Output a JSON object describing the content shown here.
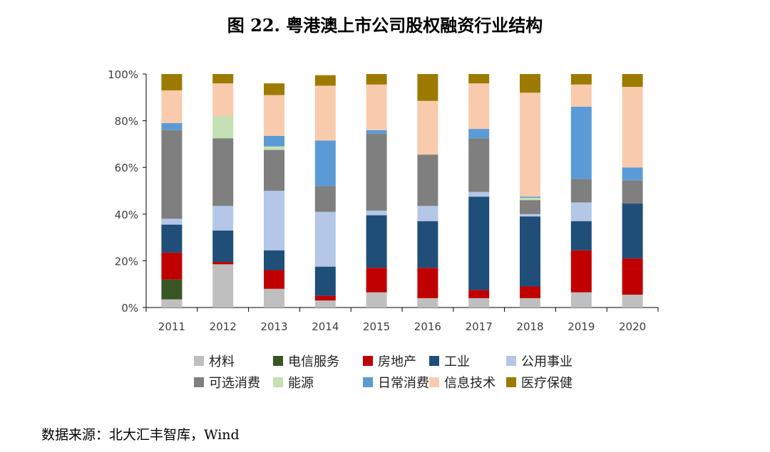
{
  "title": "图 22. 粤港澳上市公司股权融资行业结构",
  "source": "数据来源：北大汇丰智库，Wind",
  "chart_data": {
    "type": "stacked-bar-100",
    "categories": [
      "2011",
      "2012",
      "2013",
      "2014",
      "2015",
      "2016",
      "2017",
      "2018",
      "2019",
      "2020"
    ],
    "yticks": [
      "0%",
      "20%",
      "40%",
      "60%",
      "80%",
      "100%"
    ],
    "ylim": [
      0,
      100
    ],
    "series": [
      {
        "name": "材料",
        "color": "#bfbfbf",
        "values": [
          3.5,
          18.5,
          8,
          3,
          6.5,
          4,
          4,
          4,
          6.5,
          5.5
        ]
      },
      {
        "name": "电信服务",
        "color": "#375623",
        "values": [
          8.5,
          0,
          0,
          0,
          0,
          0,
          0,
          0,
          0,
          0
        ]
      },
      {
        "name": "房地产",
        "color": "#c00000",
        "values": [
          11.5,
          1,
          8,
          2,
          10.5,
          13,
          3.5,
          5,
          18,
          15.5
        ]
      },
      {
        "name": "工业",
        "color": "#1f4e79",
        "values": [
          12,
          13.5,
          8.5,
          12.5,
          22.5,
          20,
          40,
          30,
          12.5,
          23.5
        ]
      },
      {
        "name": "公用事业",
        "color": "#b4c7e7",
        "values": [
          2.5,
          10.5,
          25.5,
          23.5,
          2,
          6.5,
          2,
          1,
          8,
          0
        ]
      },
      {
        "name": "可选消费",
        "color": "#7f7f7f",
        "values": [
          38,
          29,
          17.5,
          11,
          33,
          22,
          23,
          6,
          10,
          10
        ]
      },
      {
        "name": "能源",
        "color": "#c5e0b4",
        "values": [
          0,
          9.5,
          1.5,
          0,
          0,
          0,
          0,
          1,
          0,
          0
        ]
      },
      {
        "name": "日常消费",
        "color": "#5b9bd5",
        "values": [
          3,
          0,
          4.5,
          19.5,
          1.5,
          0,
          4,
          0.5,
          31,
          5.5
        ]
      },
      {
        "name": "信息技术",
        "color": "#f8cbad",
        "values": [
          14,
          14,
          17.5,
          23.5,
          19.5,
          23,
          19.5,
          44.5,
          9.5,
          34.5
        ]
      },
      {
        "name": "医疗保健",
        "color": "#9c7b00",
        "values": [
          7,
          4,
          5,
          4.5,
          4.5,
          11.5,
          4,
          8,
          4.5,
          5.5
        ]
      }
    ]
  }
}
